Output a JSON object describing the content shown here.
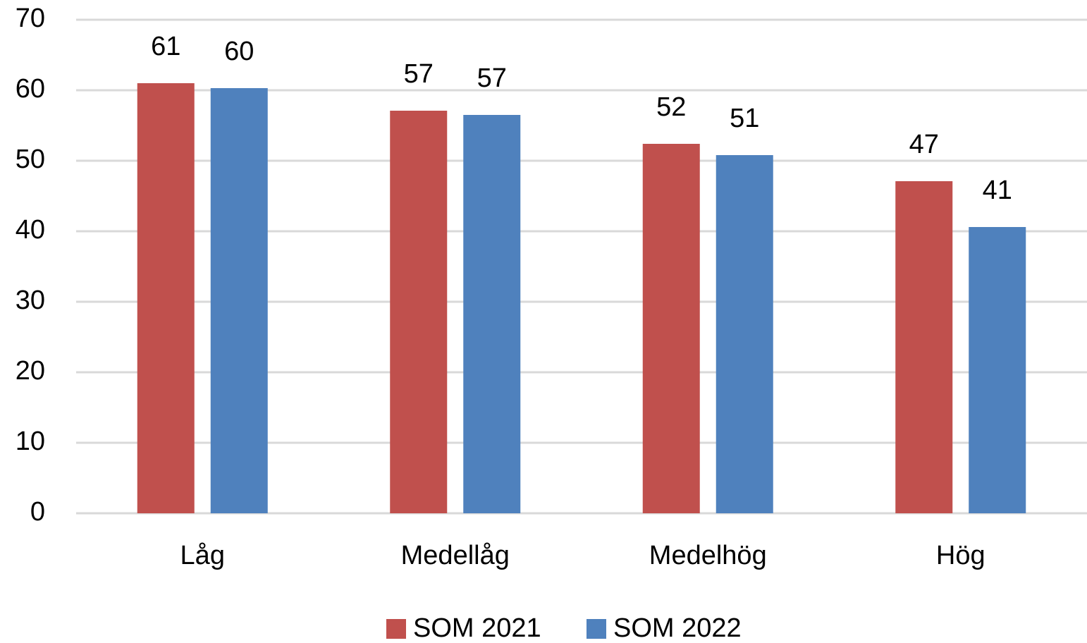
{
  "chart_data": {
    "type": "bar",
    "categories": [
      "Låg",
      "Medellåg",
      "Medelhög",
      "Hög"
    ],
    "series": [
      {
        "name": "SOM 2021",
        "color": "#c0504d",
        "values": [
          61.0,
          57.1,
          52.4,
          47.1
        ],
        "value_labels": [
          "61",
          "57",
          "52",
          "47"
        ]
      },
      {
        "name": "SOM 2022",
        "color": "#4f81bd",
        "values": [
          60.3,
          56.5,
          50.8,
          40.6
        ],
        "value_labels": [
          "60",
          "57",
          "51",
          "41"
        ]
      }
    ],
    "ylim": [
      0,
      70
    ],
    "yticks": [
      0,
      10,
      20,
      30,
      40,
      50,
      60,
      70
    ],
    "grid": true,
    "legend": "bottom"
  }
}
